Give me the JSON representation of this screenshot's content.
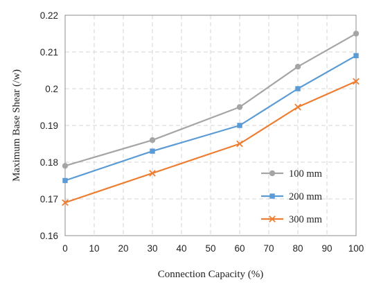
{
  "chart_data": {
    "type": "line",
    "title": "",
    "xlabel": "Connection Capacity (%)",
    "ylabel": "Maximum Base Shear (/w)",
    "xlim": [
      0,
      100
    ],
    "ylim": [
      0.16,
      0.22
    ],
    "x_ticks": [
      "0",
      "10",
      "20",
      "30",
      "40",
      "50",
      "60",
      "70",
      "80",
      "90",
      "100"
    ],
    "y_ticks": [
      "0.16",
      "0.17",
      "0.18",
      "0.19",
      "0.2",
      "0.21",
      "0.22"
    ],
    "grid": "dashed",
    "legend_position": "bottom-right",
    "x": [
      0,
      30,
      60,
      80,
      100
    ],
    "series": [
      {
        "name": "100 mm",
        "values": [
          0.179,
          0.186,
          0.195,
          0.206,
          0.215
        ],
        "color": "#A5A5A5",
        "marker": "circle"
      },
      {
        "name": "200 mm",
        "values": [
          0.175,
          0.183,
          0.19,
          0.2,
          0.209
        ],
        "color": "#5B9BD5",
        "marker": "square"
      },
      {
        "name": "300 mm",
        "values": [
          0.169,
          0.177,
          0.185,
          0.195,
          0.202
        ],
        "color": "#ED7D31",
        "marker": "x"
      }
    ]
  }
}
